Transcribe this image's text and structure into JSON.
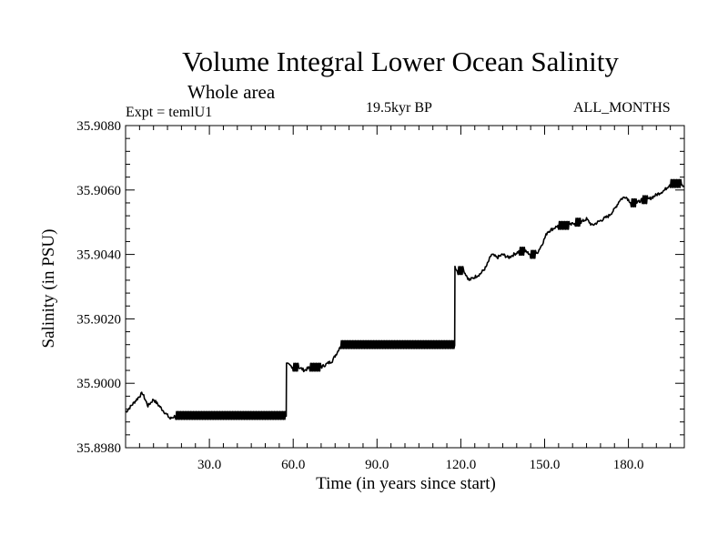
{
  "chart_data": {
    "type": "line",
    "title": "Volume Integral Lower Ocean Salinity",
    "subtitle": "Whole area",
    "experiment_label": "Expt = temlU1",
    "center_label": "19.5kyr BP",
    "right_label": "ALL_MONTHS",
    "xlabel": "Time (in years since start)",
    "ylabel": "Salinity (in PSU)",
    "xlim": [
      0,
      200
    ],
    "ylim": [
      35.898,
      35.908
    ],
    "xticks": [
      30,
      60,
      90,
      120,
      150,
      180
    ],
    "xtick_labels": [
      "30.0",
      "60.0",
      "90.0",
      "120.0",
      "150.0",
      "180.0"
    ],
    "yticks": [
      35.898,
      35.9,
      35.902,
      35.904,
      35.906,
      35.908
    ],
    "ytick_labels": [
      "35.8980",
      "35.9000",
      "35.9020",
      "35.9040",
      "35.9060",
      "35.9080"
    ],
    "series": [
      {
        "name": "Salinity",
        "color": "#000000",
        "x": [
          0,
          2,
          4,
          6,
          8,
          10,
          12,
          14,
          16,
          18,
          20,
          25,
          30,
          35,
          40,
          45,
          50,
          55,
          57.5,
          57.6,
          60,
          62,
          64,
          66,
          68,
          70,
          72,
          74,
          76,
          77,
          80,
          85,
          90,
          95,
          100,
          105,
          110,
          115,
          117.8,
          117.9,
          119,
          121,
          123,
          125,
          127,
          129,
          131,
          133,
          135,
          137,
          139,
          141,
          143,
          145,
          147,
          149,
          151,
          153,
          155,
          157,
          159,
          161,
          163,
          165,
          167,
          169,
          171,
          173,
          175,
          177,
          179,
          181,
          183,
          185,
          187,
          189,
          191,
          193,
          195,
          197,
          199,
          200
        ],
        "y": [
          35.8991,
          35.8993,
          35.8995,
          35.8997,
          35.8993,
          35.8995,
          35.8993,
          35.8991,
          35.8989,
          35.899,
          35.899,
          35.899,
          35.899,
          35.899,
          35.899,
          35.899,
          35.899,
          35.899,
          35.899,
          35.9006,
          35.9005,
          35.9005,
          35.9004,
          35.9005,
          35.9005,
          35.9005,
          35.9006,
          35.9007,
          35.901,
          35.9012,
          35.9012,
          35.9012,
          35.9012,
          35.9012,
          35.9012,
          35.9012,
          35.9012,
          35.9012,
          35.9012,
          35.9036,
          35.9035,
          35.9035,
          35.9032,
          35.9033,
          35.9034,
          35.9036,
          35.904,
          35.9039,
          35.904,
          35.9039,
          35.904,
          35.9041,
          35.9041,
          35.904,
          35.904,
          35.9043,
          35.9047,
          35.9048,
          35.9049,
          35.9049,
          35.9049,
          35.905,
          35.905,
          35.9051,
          35.9049,
          35.905,
          35.9051,
          35.9052,
          35.9054,
          35.9057,
          35.9058,
          35.9056,
          35.9056,
          35.9057,
          35.9057,
          35.9058,
          35.9059,
          35.906,
          35.9062,
          35.9062,
          35.9062,
          35.9061
        ]
      }
    ]
  }
}
